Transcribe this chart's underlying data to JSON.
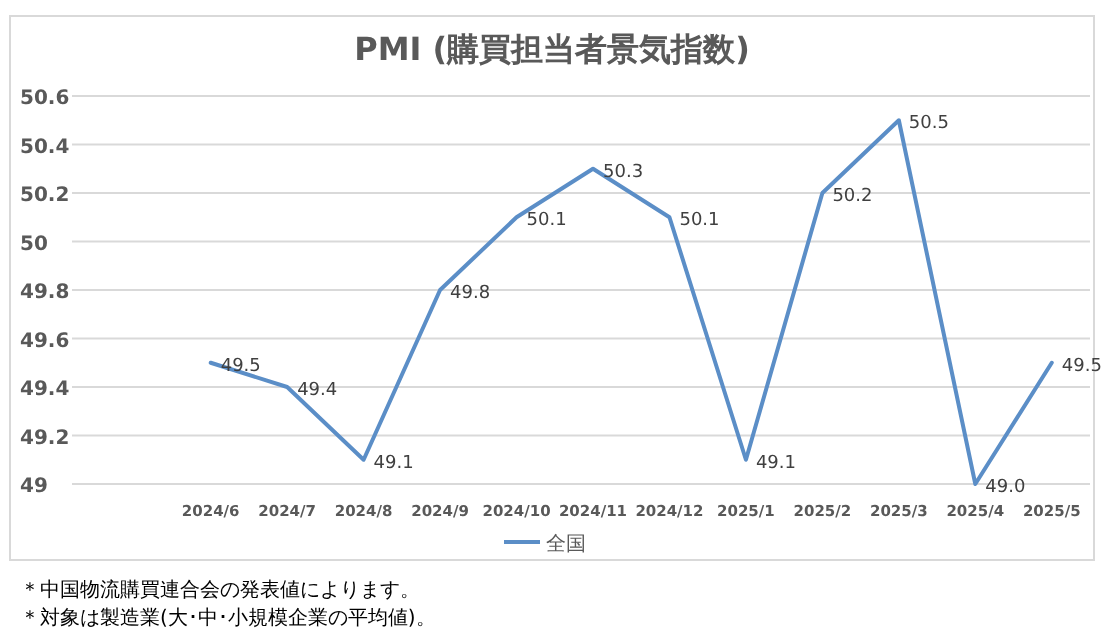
{
  "chart_data": {
    "type": "line",
    "title": "PMI (購買担当者景気指数)",
    "categories": [
      "2024/6",
      "2024/7",
      "2024/8",
      "2024/9",
      "2024/10",
      "2024/11",
      "2024/12",
      "2025/1",
      "2025/2",
      "2025/3",
      "2025/4",
      "2025/5"
    ],
    "series": [
      {
        "name": "全国",
        "color": "#5b8ec7",
        "values": [
          49.5,
          49.4,
          49.1,
          49.8,
          50.1,
          50.3,
          50.1,
          49.1,
          50.2,
          50.5,
          49.0,
          49.5
        ],
        "value_labels": [
          "49.5",
          "49.4",
          "49.1",
          "49.8",
          "50.1",
          "50.3",
          "50.1",
          "49.1",
          "50.2",
          "50.5",
          "49.0",
          "49.5"
        ]
      }
    ],
    "ylim": [
      49,
      50.6
    ],
    "yticks": [
      49,
      49.2,
      49.4,
      49.6,
      49.8,
      50,
      50.2,
      50.4,
      50.6
    ],
    "grid": "y",
    "legend": "bottom",
    "marker": "none",
    "line_style": "solid",
    "annotations": [
      "＊中国物流購買連合会の発表値によります。",
      "＊対象は製造業(大･中･小規模企業の平均値)。"
    ]
  }
}
